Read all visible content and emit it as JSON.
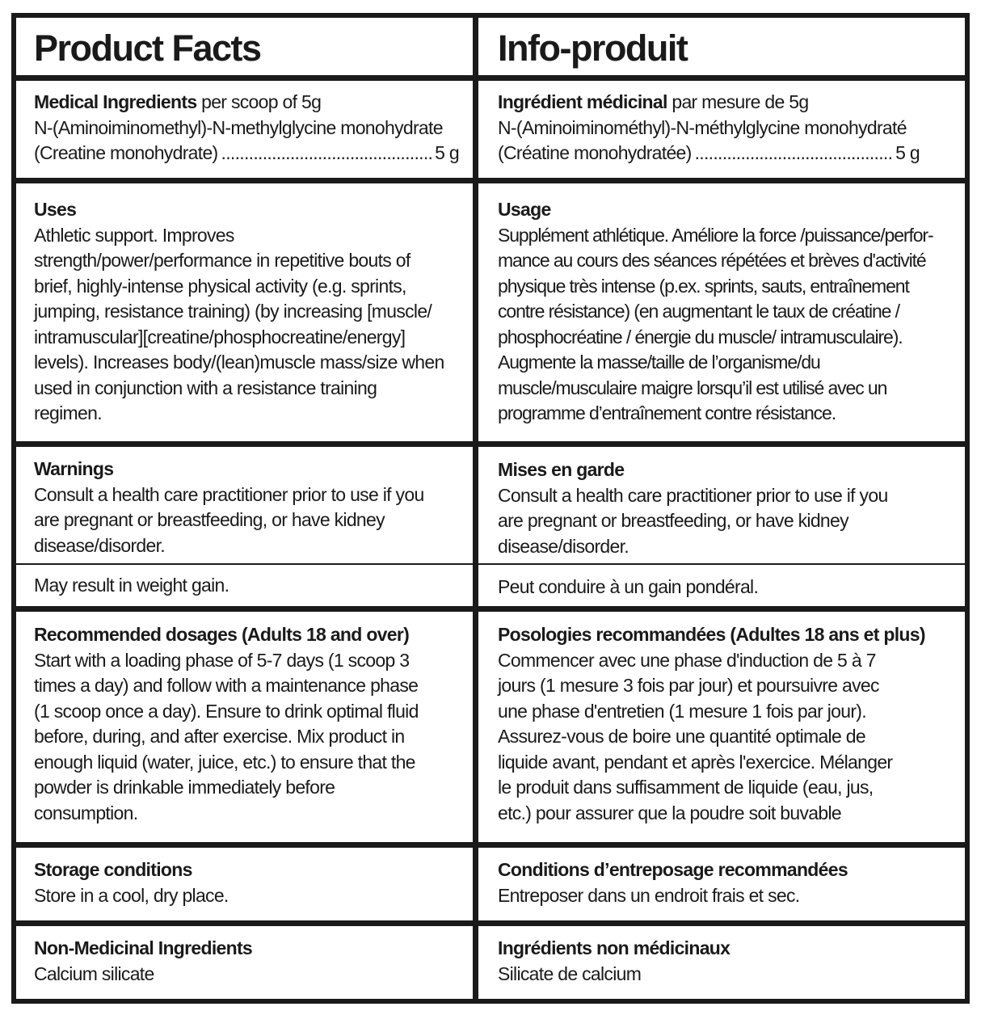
{
  "english": {
    "title": "Product Facts",
    "medicinal": {
      "heading": "Medical Ingredients",
      "heading_suffix": " per scoop of 5g",
      "line1": "N-(Aminoiminomethyl)-N-methylglycine monohydrate",
      "ingredient": "(Creatine monohydrate)",
      "dots": "........................................................................",
      "amount": "5 g"
    },
    "uses": {
      "heading": "Uses",
      "lines": [
        "Athletic support. Improves",
        "strength/power/performance in repetitive bouts of",
        "brief, highly-intense physical activity (e.g. sprints,",
        "jumping, resistance training) (by increasing [muscle/",
        "intramuscular][creatine/phosphocreatine/energy]",
        "levels). Increases body/(lean)muscle mass/size when",
        "used in conjunction with a resistance training",
        "regimen."
      ]
    },
    "warnings": {
      "heading": "Warnings",
      "lines": [
        "Consult a health care practitioner prior to use if you",
        "are pregnant or breastfeeding, or have kidney",
        "disease/disorder."
      ],
      "extra": "May result in weight gain."
    },
    "dosage": {
      "heading": "Recommended dosages (Adults 18 and over)",
      "lines": [
        "Start with a loading phase of 5-7 days (1 scoop 3",
        "times a day) and follow with a maintenance phase",
        "(1 scoop once a day). Ensure to drink optimal fluid",
        "before, during, and after exercise. Mix product in",
        "enough liquid (water, juice, etc.) to ensure that the",
        "powder is drinkable immediately before",
        "consumption."
      ]
    },
    "storage": {
      "heading": "Storage conditions",
      "text": "Store in a cool, dry place."
    },
    "non_medicinal": {
      "heading": "Non-Medicinal Ingredients",
      "text": "Calcium silicate"
    }
  },
  "french": {
    "title": "Info-produit",
    "medicinal": {
      "heading": "Ingrédient médicinal",
      "heading_suffix": " par mesure de 5g",
      "line1": "N-(Aminoiminométhyl)-N-méthylglycine monohydraté",
      "ingredient": "(Créatine monohydratée) ",
      "dots": "........................................................................",
      "amount": "5 g"
    },
    "uses": {
      "heading": "Usage",
      "lines": [
        "Supplément athlétique. Améliore la force /puissance/perfor-",
        "mance au cours des séances répétées et brèves d'activité",
        "physique très intense (p.ex. sprints, sauts, entraînement",
        "contre résistance) (en augmentant le taux de créatine /",
        "phosphocréatine / énergie du muscle/ intramusculaire).",
        "Augmente la masse/taille de l’organisme/du",
        "muscle/musculaire maigre lorsqu’il est utilisé avec un",
        "programme d’entraînement contre résistance."
      ]
    },
    "warnings": {
      "heading": "Mises en garde",
      "lines": [
        "Consult a health care practitioner prior to use if you",
        "are pregnant or breastfeeding, or have kidney",
        "disease/disorder."
      ],
      "extra": "Peut conduire à un gain pondéral."
    },
    "dosage": {
      "heading": "Posologies recommandées (Adultes 18 ans et plus)",
      "lines": [
        "Commencer avec une phase d'induction de 5 à 7",
        "jours (1 mesure 3 fois par jour) et poursuivre avec",
        "une phase d'entretien (1 mesure 1 fois par jour).",
        "Assurez-vous de boire une quantité optimale de",
        "liquide avant, pendant et après l'exercice. Mélanger",
        "le produit dans suffisamment de liquide (eau, jus,",
        "etc.) pour assurer que la poudre soit buvable"
      ]
    },
    "storage": {
      "heading": "Conditions d’entreposage recommandées",
      "text": "Entreposer dans un endroit frais et sec."
    },
    "non_medicinal": {
      "heading": "Ingrédients non médicinaux",
      "text": "Silicate de calcium"
    }
  }
}
